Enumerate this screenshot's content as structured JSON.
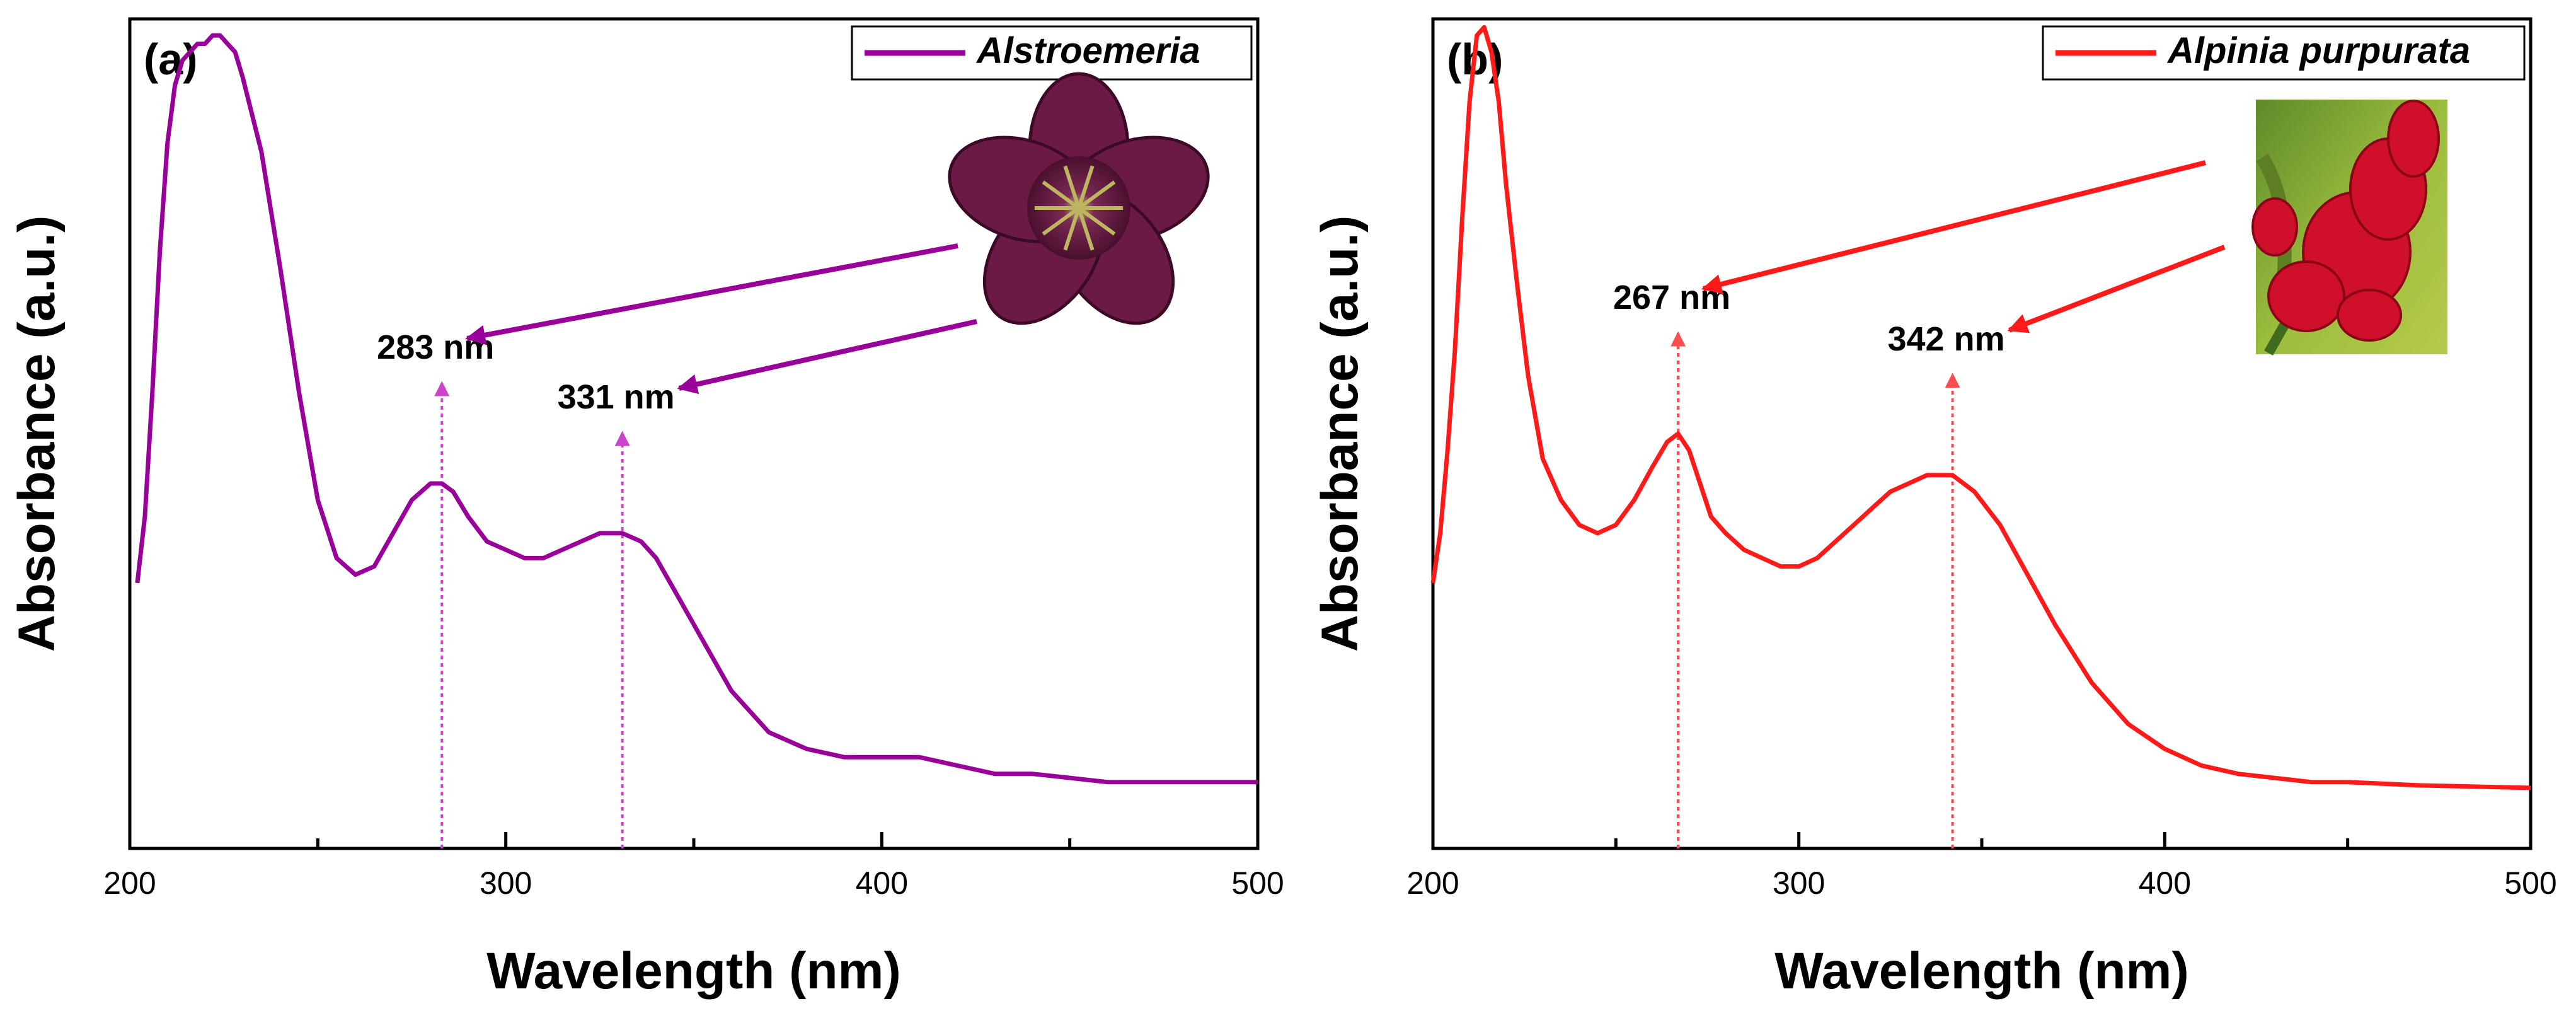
{
  "chart_data": [
    {
      "type": "line",
      "panel_label": "(a)",
      "xlabel": "Wavelength (nm)",
      "ylabel": "Absorbance (a.u.)",
      "xlim": [
        200,
        500
      ],
      "ylim": [
        0,
        1.0
      ],
      "x_ticks": [
        200,
        300,
        400,
        500
      ],
      "x_tick_labels": [
        "200",
        "300",
        "400",
        "500"
      ],
      "y_ticks_shown": false,
      "legend": {
        "entries": [
          "Alstroemeria"
        ],
        "position": "top-right"
      },
      "inset_image": "Alstroemeria flower photograph",
      "annotations": [
        {
          "text": "283 nm",
          "x": 283
        },
        {
          "text": "331 nm",
          "x": 331
        }
      ],
      "series": [
        {
          "name": "Alstroemeria",
          "color": "#990099",
          "x": [
            202,
            204,
            206,
            208,
            210,
            212,
            214,
            216,
            218,
            220,
            222,
            224,
            226,
            228,
            230,
            235,
            240,
            245,
            250,
            255,
            260,
            265,
            270,
            275,
            280,
            283,
            286,
            290,
            295,
            300,
            305,
            310,
            315,
            320,
            325,
            331,
            336,
            340,
            345,
            350,
            355,
            360,
            370,
            380,
            390,
            400,
            410,
            420,
            430,
            440,
            450,
            460,
            470,
            480,
            490,
            500
          ],
          "y": [
            0.32,
            0.4,
            0.55,
            0.72,
            0.85,
            0.92,
            0.95,
            0.96,
            0.97,
            0.97,
            0.98,
            0.98,
            0.97,
            0.96,
            0.93,
            0.84,
            0.7,
            0.55,
            0.42,
            0.35,
            0.33,
            0.34,
            0.38,
            0.42,
            0.44,
            0.44,
            0.43,
            0.4,
            0.37,
            0.36,
            0.35,
            0.35,
            0.36,
            0.37,
            0.38,
            0.38,
            0.37,
            0.35,
            0.31,
            0.27,
            0.23,
            0.19,
            0.14,
            0.12,
            0.11,
            0.11,
            0.11,
            0.1,
            0.09,
            0.09,
            0.085,
            0.08,
            0.08,
            0.08,
            0.08,
            0.08
          ]
        }
      ]
    },
    {
      "type": "line",
      "panel_label": "(b)",
      "xlabel": "Wavelength (nm)",
      "ylabel": "Absorbance (a.u.)",
      "xlim": [
        200,
        500
      ],
      "ylim": [
        0,
        1.0
      ],
      "x_ticks": [
        200,
        300,
        400,
        500
      ],
      "x_tick_labels": [
        "200",
        "300",
        "400",
        "500"
      ],
      "y_ticks_shown": false,
      "legend": {
        "entries": [
          "Alpinia purpurata"
        ],
        "position": "top-right"
      },
      "inset_image": "Alpinia purpurata flower photograph",
      "annotations": [
        {
          "text": "267 nm",
          "x": 267
        },
        {
          "text": "342 nm",
          "x": 342
        }
      ],
      "series": [
        {
          "name": "Alpinia purpurata",
          "color": "#ff1a1a",
          "x": [
            200,
            202,
            204,
            206,
            208,
            210,
            212,
            214,
            216,
            218,
            220,
            223,
            226,
            230,
            235,
            240,
            245,
            250,
            255,
            260,
            264,
            267,
            270,
            273,
            276,
            280,
            285,
            290,
            295,
            300,
            305,
            310,
            315,
            320,
            325,
            330,
            335,
            342,
            348,
            355,
            360,
            370,
            380,
            390,
            400,
            410,
            420,
            430,
            440,
            450,
            460,
            470,
            480,
            490,
            500
          ],
          "y": [
            0.32,
            0.38,
            0.48,
            0.6,
            0.76,
            0.9,
            0.98,
            0.99,
            0.96,
            0.9,
            0.8,
            0.68,
            0.57,
            0.47,
            0.42,
            0.39,
            0.38,
            0.39,
            0.42,
            0.46,
            0.49,
            0.5,
            0.48,
            0.44,
            0.4,
            0.38,
            0.36,
            0.35,
            0.34,
            0.34,
            0.35,
            0.37,
            0.39,
            0.41,
            0.43,
            0.44,
            0.45,
            0.45,
            0.43,
            0.39,
            0.35,
            0.27,
            0.2,
            0.15,
            0.12,
            0.1,
            0.09,
            0.085,
            0.08,
            0.08,
            0.078,
            0.076,
            0.075,
            0.074,
            0.073
          ]
        }
      ]
    }
  ]
}
